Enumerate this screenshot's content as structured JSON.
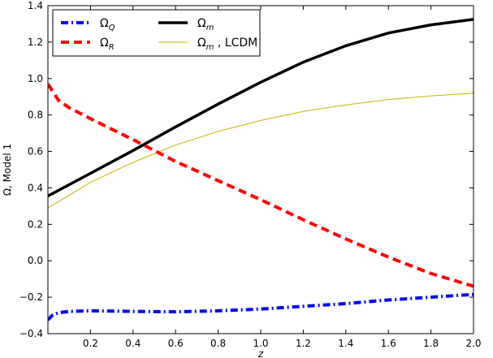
{
  "chart_data": {
    "type": "line",
    "title": "",
    "xlabel": "z",
    "ylabel": "Ω, Model 1",
    "xlim": [
      0.0,
      2.0
    ],
    "ylim": [
      -0.4,
      1.4
    ],
    "xticks": [
      0.2,
      0.4,
      0.6,
      0.8,
      1.0,
      1.2,
      1.4,
      1.6,
      1.8,
      2.0
    ],
    "xtick_labels": [
      "0.2",
      "0.4",
      "0.6",
      "0.8",
      "1.0",
      "1.2",
      "1.4",
      "1.6",
      "1.8",
      "2.0"
    ],
    "yticks": [
      -0.4,
      -0.2,
      0.0,
      0.2,
      0.4,
      0.6,
      0.8,
      1.0,
      1.2,
      1.4
    ],
    "ytick_labels": [
      "−0.4",
      "−0.2",
      "0.0",
      "0.2",
      "0.4",
      "0.6",
      "0.8",
      "1.0",
      "1.2",
      "1.4"
    ],
    "grid": false,
    "legend_position": "top-left",
    "series": [
      {
        "name": "Ω",
        "sub": "Q",
        "suffix": "",
        "color": "#0000ff",
        "style": "dashdot",
        "x": [
          0.0,
          0.02,
          0.05,
          0.1,
          0.2,
          0.4,
          0.6,
          0.8,
          1.0,
          1.2,
          1.4,
          1.6,
          1.8,
          2.0
        ],
        "y": [
          -0.325,
          -0.3,
          -0.285,
          -0.278,
          -0.275,
          -0.278,
          -0.28,
          -0.275,
          -0.265,
          -0.25,
          -0.235,
          -0.215,
          -0.2,
          -0.185
        ]
      },
      {
        "name": "Ω",
        "sub": "R",
        "suffix": "",
        "color": "#ff0000",
        "style": "dashed",
        "x": [
          0.0,
          0.05,
          0.1,
          0.2,
          0.4,
          0.6,
          0.8,
          1.0,
          1.2,
          1.4,
          1.6,
          1.8,
          2.0
        ],
        "y": [
          0.97,
          0.88,
          0.84,
          0.78,
          0.665,
          0.545,
          0.44,
          0.335,
          0.225,
          0.12,
          0.02,
          -0.07,
          -0.14
        ]
      },
      {
        "name": "Ω",
        "sub": "m",
        "suffix": "",
        "color": "#000000",
        "style": "solid-thick",
        "x": [
          0.0,
          0.2,
          0.4,
          0.6,
          0.8,
          1.0,
          1.2,
          1.4,
          1.6,
          1.8,
          2.0
        ],
        "y": [
          0.355,
          0.48,
          0.605,
          0.735,
          0.86,
          0.98,
          1.09,
          1.18,
          1.25,
          1.295,
          1.325
        ]
      },
      {
        "name": "Ω",
        "sub": "m",
        "suffix": " , LCDM",
        "color": "#c8b400",
        "style": "solid-thin",
        "x": [
          0.0,
          0.2,
          0.4,
          0.6,
          0.8,
          1.0,
          1.2,
          1.4,
          1.6,
          1.8,
          2.0
        ],
        "y": [
          0.29,
          0.43,
          0.54,
          0.635,
          0.71,
          0.77,
          0.82,
          0.855,
          0.885,
          0.905,
          0.92
        ]
      }
    ]
  }
}
